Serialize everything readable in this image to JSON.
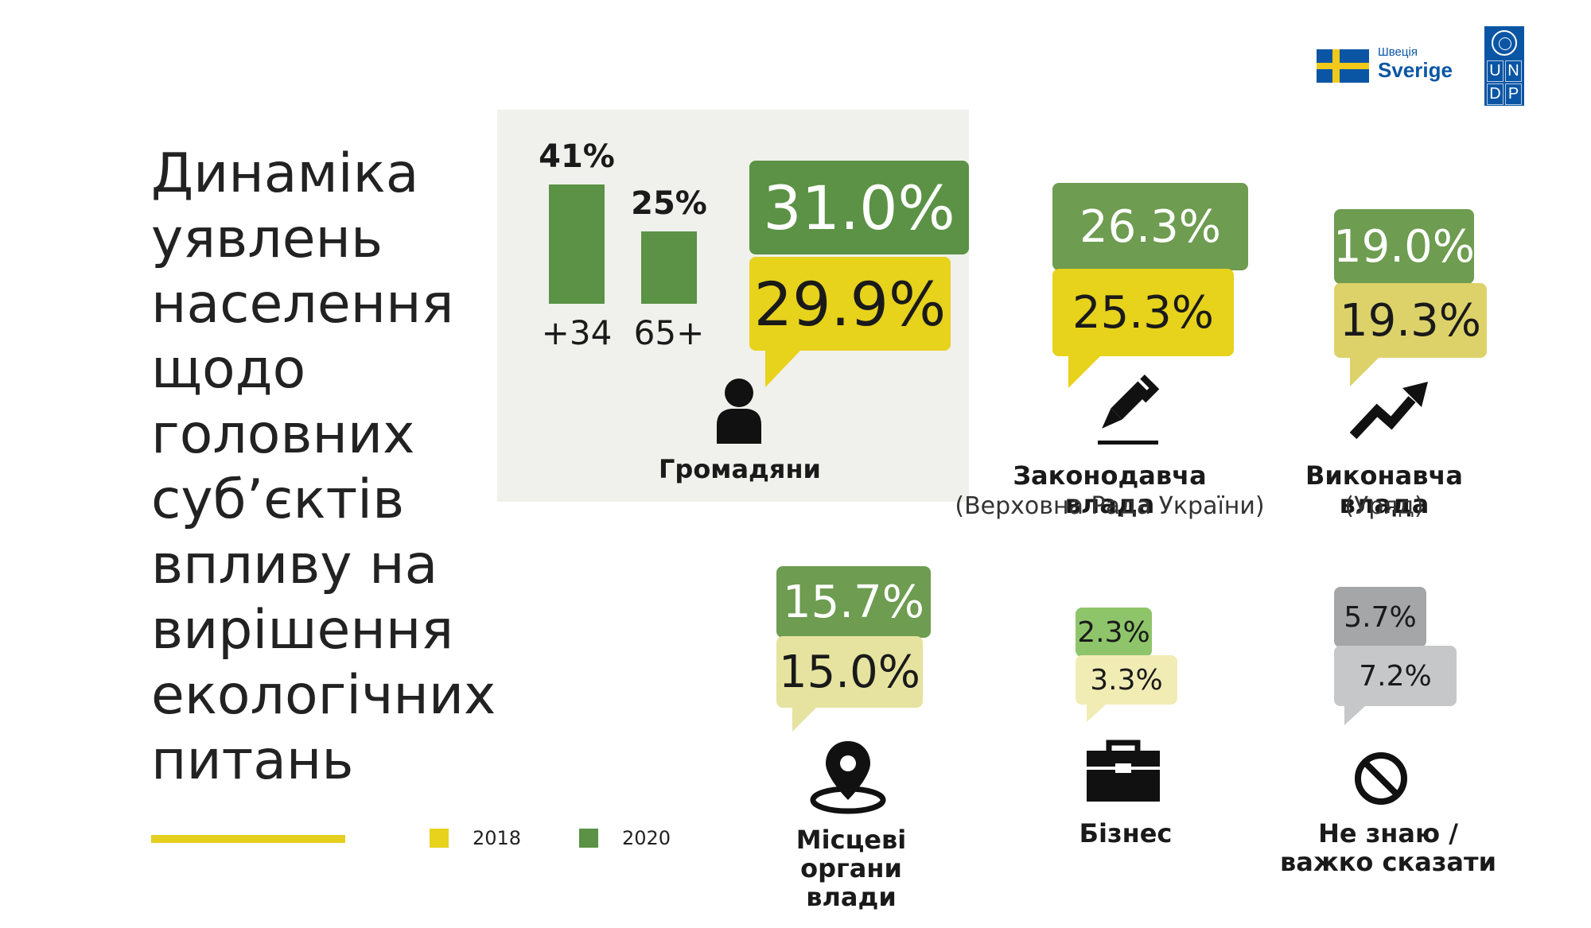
{
  "title_lines": [
    "Динаміка",
    "уявлень",
    "населення",
    "щодо",
    "головних",
    "суб’єктів",
    "впливу на",
    "вирішення",
    "екологічних",
    "питань"
  ],
  "legend": [
    {
      "label": "2018",
      "color": "#e7d21c"
    },
    {
      "label": "2020",
      "color": "#5b9245"
    }
  ],
  "logos": {
    "sweden_ua": "Швеція",
    "sweden_se": "Sverige",
    "undp_letters": [
      "U",
      "N",
      "D",
      "P"
    ]
  },
  "colors": {
    "green_strong": "#5b9245",
    "green_light": "#6e9c50",
    "yellow_strong": "#e7d21c",
    "yellow_mid": "#ddd26a",
    "yellow_pale": "#e5e39f",
    "green_pale": "#8fc56a",
    "yellow_very_pale": "#f1ecb4",
    "grey_dark": "#a5a6a8",
    "grey_light": "#c6c7c9"
  },
  "chart_data": [
    {
      "type": "bar",
      "categories": [
        "+34",
        "65+"
      ],
      "values": [
        41,
        25
      ],
      "data_labels": [
        "41%",
        "25%"
      ],
      "ylim": [
        0,
        45
      ]
    },
    {
      "type": "table",
      "series_names": [
        "2020",
        "2018"
      ],
      "items": [
        {
          "name": "Громадяни",
          "sub": "",
          "v2020": 31.0,
          "v2018": 29.9,
          "label2020": "31.0%",
          "label2018": "29.9%",
          "icon": "person-icon"
        },
        {
          "name": "Законодавча влада",
          "sub": "(Верховна Рада України)",
          "v2020": 26.3,
          "v2018": 25.3,
          "label2020": "26.3%",
          "label2018": "25.3%",
          "icon": "pen-icon"
        },
        {
          "name": "Виконавча влада",
          "sub": "(Уряд)",
          "v2020": 19.0,
          "v2018": 19.3,
          "label2020": "19.0%",
          "label2018": "19.3%",
          "icon": "trend-arrow-icon"
        },
        {
          "name": "Місцеві органи влади",
          "name_lines": [
            "Місцеві",
            "органи влади"
          ],
          "sub": "",
          "v2020": 15.7,
          "v2018": 15.0,
          "label2020": "15.7%",
          "label2018": "15.0%",
          "icon": "map-pin-icon"
        },
        {
          "name": "Бізнес",
          "sub": "",
          "v2020": 2.3,
          "v2018": 3.3,
          "label2020": "2.3%",
          "label2018": "3.3%",
          "icon": "briefcase-icon"
        },
        {
          "name": "Не знаю / важко сказати",
          "name_lines": [
            "Не знаю /",
            "важко сказати"
          ],
          "sub": "",
          "v2020": 5.7,
          "v2018": 7.2,
          "label2020": "5.7%",
          "label2018": "7.2%",
          "icon": "no-sign-icon"
        }
      ]
    }
  ]
}
